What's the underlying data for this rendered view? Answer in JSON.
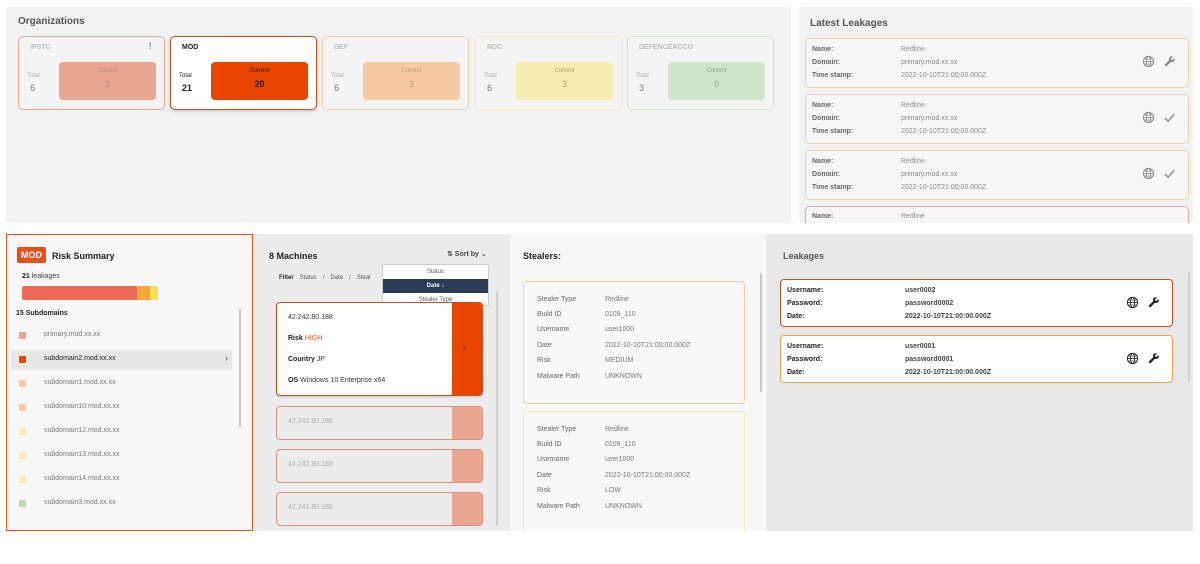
{
  "organizations": {
    "title": "Organizations",
    "total_label": "Total",
    "current_label": "Current",
    "cards": [
      {
        "name": "IPSTC",
        "alert": "!",
        "total": "6",
        "current": "3"
      },
      {
        "name": "MOD",
        "alert": "",
        "total": "21",
        "current": "20"
      },
      {
        "name": "DEF",
        "alert": "",
        "total": "6",
        "current": "3"
      },
      {
        "name": "NDC",
        "alert": "",
        "total": "6",
        "current": "3"
      },
      {
        "name": "DEFENCEACCO",
        "alert": "",
        "total": "3",
        "current": "0"
      }
    ],
    "colors": {
      "ipstc": "#e8a590",
      "mod": "#e84600",
      "def": "#f6c9a0",
      "ndc": "#f6ecb0",
      "defenceacco": "#cfe4c8"
    }
  },
  "latest_leakages": {
    "title": "Latest Leakages",
    "labels": {
      "name": "Name:",
      "domain": "Domain:",
      "timestamp": "Time stamp:"
    },
    "items": [
      {
        "name": "Redline",
        "domain": "primary.mod.xx.xx",
        "timestamp": "2022-10-10T21:00:00.000Z",
        "action_icon": "wrench-icon"
      },
      {
        "name": "Redline",
        "domain": "primary.mod.xx.xx",
        "timestamp": "2022-10-10T21:00:00.000Z",
        "action_icon": "check-icon"
      },
      {
        "name": "Redline",
        "domain": "primary.mod.xx.xx",
        "timestamp": "2022-10-10T21:00:00.000Z",
        "action_icon": "check-icon"
      },
      {
        "name": "Redline",
        "domain": "",
        "timestamp": "",
        "action_icon": ""
      }
    ]
  },
  "risk_summary": {
    "badge": "MOD",
    "title": "Risk Summary",
    "leak_count": "21",
    "leak_suffix": " leakages",
    "subdomains_title": "15 Subdomains",
    "subdomains": [
      {
        "name": "primary.mod.xx.xx",
        "color": "#e8a590",
        "selected": false
      },
      {
        "name": "subdomain2.mod.xx.xx",
        "color": "#e84600",
        "selected": true
      },
      {
        "name": "subdomain1.mod.xx.xx",
        "color": "#f6c9a0",
        "selected": false
      },
      {
        "name": "subdomain10.mod.xx.xx",
        "color": "#f6c9a0",
        "selected": false
      },
      {
        "name": "subdomain12.mod.xx.xx",
        "color": "#f6ecb0",
        "selected": false
      },
      {
        "name": "subdomain13.mod.xx.xx",
        "color": "#f6ecb0",
        "selected": false
      },
      {
        "name": "subdomain14.mod.xx.xx",
        "color": "#f6ecb0",
        "selected": false
      },
      {
        "name": "subdomain3.mod.xx.xx",
        "color": "#b8d8b0",
        "selected": false
      }
    ]
  },
  "machines": {
    "title": "8 Machines",
    "sort_label": "⇅ Sort by ⌄",
    "filter_label": "Filter",
    "filter_options": [
      "Status",
      "/",
      "Date",
      "/",
      "Steal"
    ],
    "sort_menu": [
      {
        "label": "Status",
        "active": false
      },
      {
        "label": "Date ↓",
        "active": true
      },
      {
        "label": "Stealer Type",
        "active": false
      }
    ],
    "selected": {
      "ip": "42.242.80.188",
      "risk_label": "Risk",
      "risk_value": "HIGH",
      "country_label": "Country",
      "country_value": "JP",
      "os_label": "OS",
      "os_value": "Windows 10 Enterprise x64"
    },
    "others": [
      "42.242.80.188",
      "42.242.80.188",
      "42.242.80.188"
    ]
  },
  "stealers": {
    "title": "Stealers:",
    "labels": [
      "Stealer Type",
      "Build ID",
      "Username",
      "Date",
      "Risk",
      "Malware Path"
    ],
    "items": [
      {
        "values": [
          "Redline",
          "0109_110",
          "user1000",
          "2022-10-10T21:00:00.000Z",
          "MEDIUM",
          "UNKNOWN"
        ],
        "color": "#f6c9a0"
      },
      {
        "values": [
          "Redline",
          "0109_110",
          "user1000",
          "2022-10-10T21:00:00.000Z",
          "LOW",
          "UNKNOWN"
        ],
        "color": "#f6ecb0"
      }
    ]
  },
  "leakages": {
    "title": "Leakages",
    "labels": {
      "username": "Username:",
      "password": "Password:",
      "date": "Date:"
    },
    "items": [
      {
        "username": "user0002",
        "password": "password0002",
        "date": "2022-10-10T21:00:00.000Z",
        "color": "#c0521a"
      },
      {
        "username": "user0001",
        "password": "password0001",
        "date": "2022-10-10T21:00:00.000Z",
        "color": "#f0a040"
      }
    ]
  }
}
